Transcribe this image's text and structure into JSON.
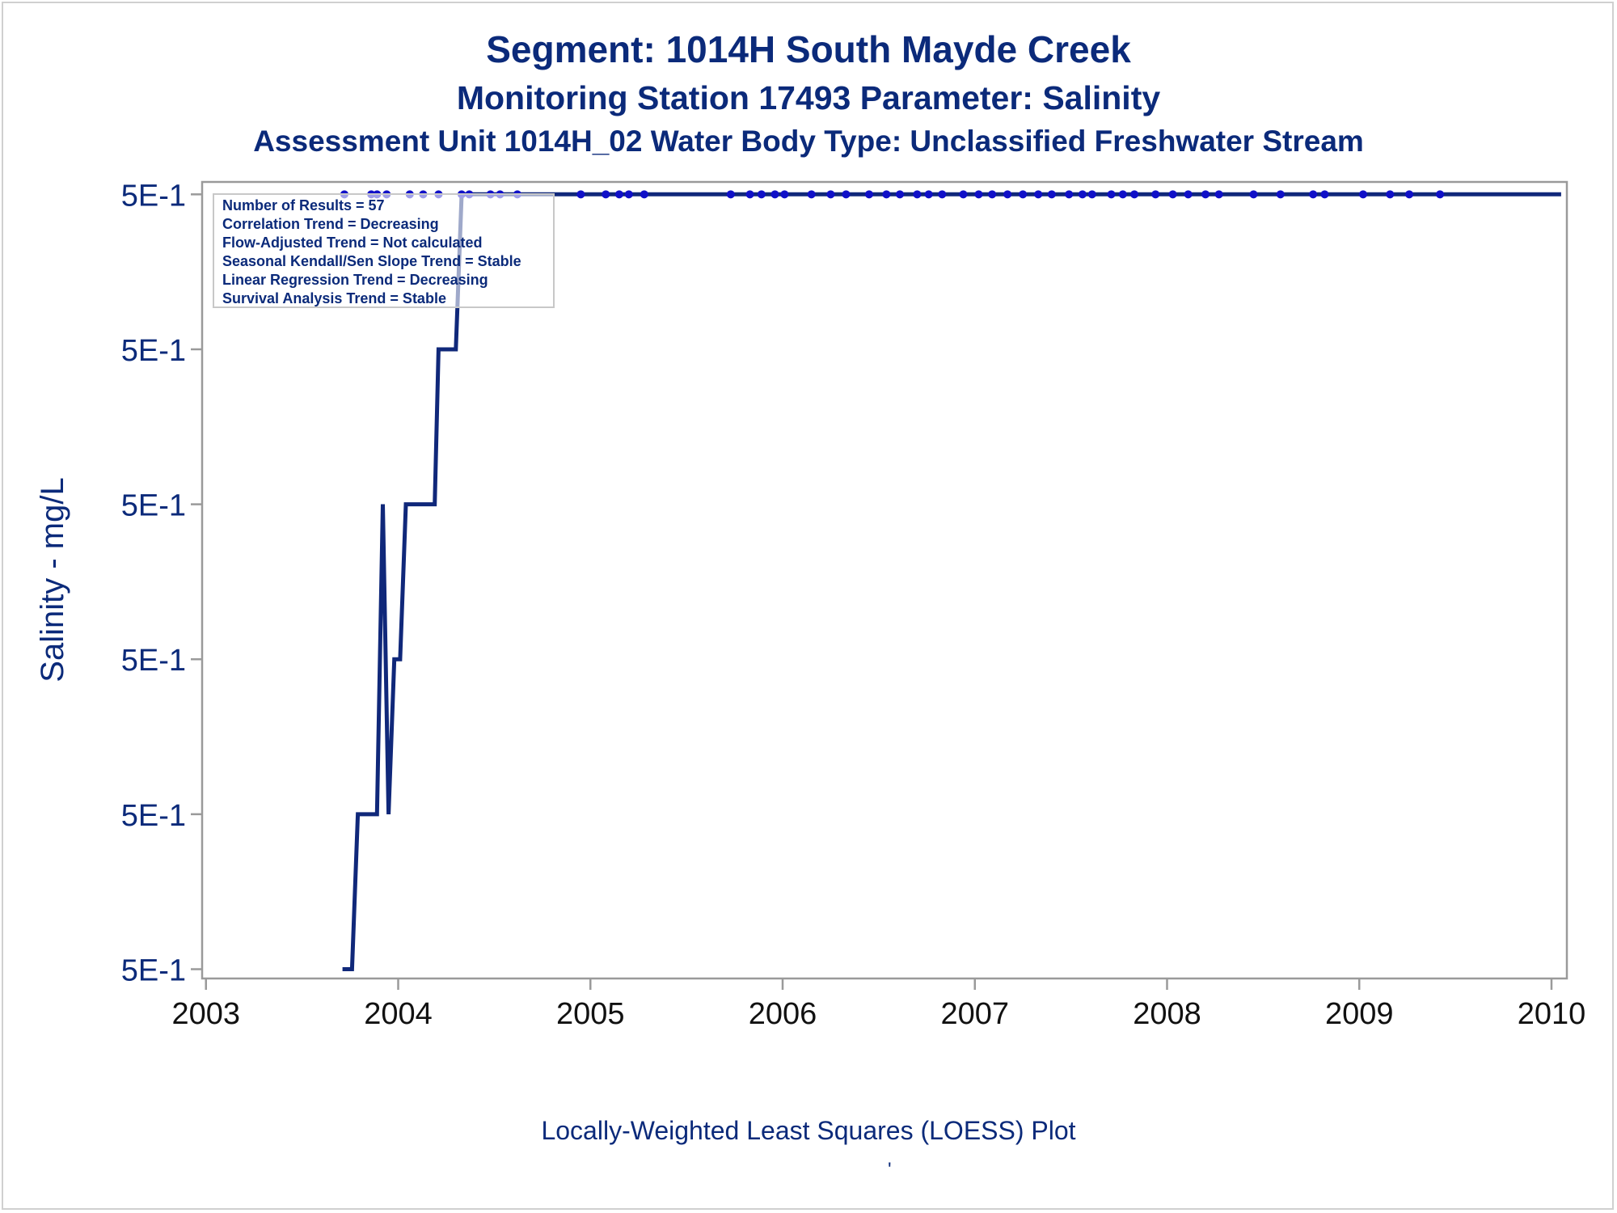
{
  "colors": {
    "text": "#0b2a7a",
    "line": "#10287a",
    "points": "#1010c8",
    "axis": "#9a9a9a",
    "legend_border": "#c8c8c8",
    "tick_text": "#111111"
  },
  "chart_data": {
    "type": "line",
    "title": "Segment: 1014H  South Mayde Creek",
    "subtitle": "Monitoring Station 17493 Parameter: Salinity",
    "subtitle2": "Assessment Unit 1014H_02   Water Body Type: Unclassified Freshwater Stream",
    "xlabel": "",
    "ylabel": "Salinity - mg/L",
    "footnote": "Locally-Weighted Least Squares (LOESS) Plot",
    "footnote_mark": "'",
    "x_ticks": [
      2003,
      2004,
      2005,
      2006,
      2007,
      2008,
      2009,
      2010
    ],
    "x_tick_labels": [
      "2003",
      "2004",
      "2005",
      "2006",
      "2007",
      "2008",
      "2009",
      "2010"
    ],
    "xlim": [
      2002.98,
      2010.08
    ],
    "y_ticks": [
      0,
      1,
      2,
      3,
      4,
      5
    ],
    "y_tick_labels": [
      "5E-1",
      "5E-1",
      "5E-1",
      "5E-1",
      "5E-1",
      "5E-1"
    ],
    "ylim": [
      -0.06,
      5.08
    ],
    "grid": false,
    "legend_placement": "top-left",
    "stats": [
      "Number of Results = 57",
      "Correlation Trend = Decreasing",
      "Flow-Adjusted Trend = Not calculated",
      "Seasonal Kendall/Sen Slope Trend = Stable",
      "Linear Regression Trend = Decreasing",
      "Survival Analysis Trend = Stable"
    ],
    "series": [
      {
        "kind": "loess-line",
        "x": [
          2003.71,
          2003.76,
          2003.79,
          2003.82,
          2003.89,
          2003.92,
          2003.95,
          2003.98,
          2004.01,
          2004.04,
          2004.19,
          2004.21,
          2004.3,
          2004.33,
          2010.05
        ],
        "y": [
          0,
          0,
          1,
          1,
          1,
          3,
          1,
          2,
          2,
          3,
          3,
          4,
          4,
          5,
          5
        ]
      },
      {
        "kind": "points",
        "x": [
          2003.72,
          2003.86,
          2003.89,
          2003.94,
          2004.06,
          2004.13,
          2004.21,
          2004.33,
          2004.37,
          2004.48,
          2004.53,
          2004.62,
          2004.95,
          2005.08,
          2005.15,
          2005.2,
          2005.28,
          2005.73,
          2005.83,
          2005.89,
          2005.96,
          2006.01,
          2006.15,
          2006.25,
          2006.33,
          2006.45,
          2006.54,
          2006.61,
          2006.7,
          2006.76,
          2006.83,
          2006.94,
          2007.02,
          2007.09,
          2007.17,
          2007.25,
          2007.33,
          2007.4,
          2007.49,
          2007.56,
          2007.61,
          2007.71,
          2007.77,
          2007.83,
          2007.94,
          2008.03,
          2008.11,
          2008.2,
          2008.27,
          2008.45,
          2008.59,
          2008.76,
          2008.82,
          2009.02,
          2009.16,
          2009.26,
          2009.42
        ],
        "y": [
          5,
          5,
          5,
          5,
          5,
          5,
          5,
          5,
          5,
          5,
          5,
          5,
          5,
          5,
          5,
          5,
          5,
          5,
          5,
          5,
          5,
          5,
          5,
          5,
          5,
          5,
          5,
          5,
          5,
          5,
          5,
          5,
          5,
          5,
          5,
          5,
          5,
          5,
          5,
          5,
          5,
          5,
          5,
          5,
          5,
          5,
          5,
          5,
          5,
          5,
          5,
          5,
          5,
          5,
          5,
          5,
          5
        ]
      }
    ]
  }
}
